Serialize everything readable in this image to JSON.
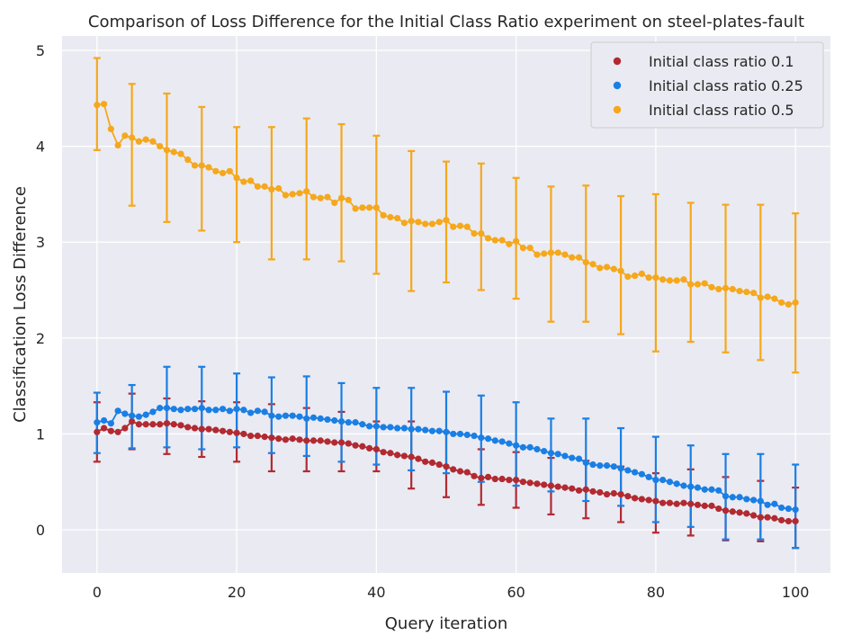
{
  "chart_data": {
    "type": "scatter",
    "title": "Comparison of Loss Difference for the Initial Class Ratio experiment on steel-plates-fault",
    "xlabel": "Query iteration",
    "ylabel": "Classification Loss Difference",
    "xlim": [
      -5,
      105
    ],
    "ylim": [
      -0.45,
      5.15
    ],
    "xticks": [
      0,
      20,
      40,
      60,
      80,
      100
    ],
    "yticks": [
      0,
      1,
      2,
      3,
      4,
      5
    ],
    "grid": true,
    "legend_position": "top-right",
    "background_color": "#eaeaf2",
    "series": [
      {
        "name": "Initial class ratio 0.1",
        "color": "#b22a31",
        "x": [
          0,
          1,
          2,
          3,
          4,
          5,
          6,
          7,
          8,
          9,
          10,
          11,
          12,
          13,
          14,
          15,
          16,
          17,
          18,
          19,
          20,
          21,
          22,
          23,
          24,
          25,
          26,
          27,
          28,
          29,
          30,
          31,
          32,
          33,
          34,
          35,
          36,
          37,
          38,
          39,
          40,
          41,
          42,
          43,
          44,
          45,
          46,
          47,
          48,
          49,
          50,
          51,
          52,
          53,
          54,
          55,
          56,
          57,
          58,
          59,
          60,
          61,
          62,
          63,
          64,
          65,
          66,
          67,
          68,
          69,
          70,
          71,
          72,
          73,
          74,
          75,
          76,
          77,
          78,
          79,
          80,
          81,
          82,
          83,
          84,
          85,
          86,
          87,
          88,
          89,
          90,
          91,
          92,
          93,
          94,
          95,
          96,
          97,
          98,
          99,
          100
        ],
        "values": [
          1.02,
          1.06,
          1.03,
          1.02,
          1.06,
          1.13,
          1.1,
          1.1,
          1.1,
          1.1,
          1.11,
          1.1,
          1.09,
          1.07,
          1.06,
          1.05,
          1.05,
          1.04,
          1.03,
          1.02,
          1.01,
          1.0,
          0.98,
          0.98,
          0.97,
          0.96,
          0.95,
          0.94,
          0.95,
          0.94,
          0.93,
          0.93,
          0.93,
          0.92,
          0.91,
          0.91,
          0.9,
          0.88,
          0.87,
          0.85,
          0.84,
          0.81,
          0.8,
          0.78,
          0.77,
          0.76,
          0.74,
          0.71,
          0.7,
          0.68,
          0.66,
          0.63,
          0.61,
          0.6,
          0.56,
          0.54,
          0.55,
          0.53,
          0.53,
          0.52,
          0.52,
          0.5,
          0.49,
          0.48,
          0.47,
          0.46,
          0.45,
          0.44,
          0.43,
          0.41,
          0.42,
          0.4,
          0.39,
          0.37,
          0.38,
          0.37,
          0.35,
          0.33,
          0.32,
          0.31,
          0.3,
          0.28,
          0.28,
          0.27,
          0.28,
          0.27,
          0.26,
          0.25,
          0.25,
          0.22,
          0.2,
          0.19,
          0.18,
          0.17,
          0.15,
          0.13,
          0.13,
          0.12,
          0.1,
          0.09,
          0.09
        ],
        "error_bar_x": [
          0,
          5,
          10,
          15,
          20,
          25,
          30,
          35,
          40,
          45,
          50,
          55,
          60,
          65,
          70,
          75,
          80,
          85,
          90,
          95,
          100
        ],
        "error_low": [
          0.71,
          0.84,
          0.79,
          0.76,
          0.71,
          0.61,
          0.61,
          0.61,
          0.61,
          0.43,
          0.34,
          0.26,
          0.23,
          0.16,
          0.12,
          0.08,
          -0.03,
          -0.06,
          -0.11,
          -0.12,
          -0.19
        ],
        "error_high": [
          1.33,
          1.42,
          1.37,
          1.34,
          1.33,
          1.31,
          1.27,
          1.23,
          1.13,
          1.13,
          1.02,
          0.84,
          0.81,
          0.75,
          0.72,
          0.66,
          0.59,
          0.63,
          0.55,
          0.51,
          0.44
        ]
      },
      {
        "name": "Initial class ratio 0.25",
        "color": "#1a7fe4",
        "x": [
          0,
          1,
          2,
          3,
          4,
          5,
          6,
          7,
          8,
          9,
          10,
          11,
          12,
          13,
          14,
          15,
          16,
          17,
          18,
          19,
          20,
          21,
          22,
          23,
          24,
          25,
          26,
          27,
          28,
          29,
          30,
          31,
          32,
          33,
          34,
          35,
          36,
          37,
          38,
          39,
          40,
          41,
          42,
          43,
          44,
          45,
          46,
          47,
          48,
          49,
          50,
          51,
          52,
          53,
          54,
          55,
          56,
          57,
          58,
          59,
          60,
          61,
          62,
          63,
          64,
          65,
          66,
          67,
          68,
          69,
          70,
          71,
          72,
          73,
          74,
          75,
          76,
          77,
          78,
          79,
          80,
          81,
          82,
          83,
          84,
          85,
          86,
          87,
          88,
          89,
          90,
          91,
          92,
          93,
          94,
          95,
          96,
          97,
          98,
          99,
          100
        ],
        "values": [
          1.12,
          1.14,
          1.11,
          1.24,
          1.21,
          1.19,
          1.18,
          1.2,
          1.23,
          1.27,
          1.27,
          1.26,
          1.25,
          1.26,
          1.26,
          1.27,
          1.25,
          1.25,
          1.26,
          1.24,
          1.26,
          1.25,
          1.22,
          1.24,
          1.23,
          1.19,
          1.18,
          1.19,
          1.19,
          1.18,
          1.16,
          1.17,
          1.16,
          1.15,
          1.14,
          1.13,
          1.12,
          1.12,
          1.1,
          1.08,
          1.08,
          1.07,
          1.07,
          1.06,
          1.06,
          1.05,
          1.05,
          1.04,
          1.03,
          1.03,
          1.02,
          1.0,
          1.0,
          0.99,
          0.98,
          0.96,
          0.95,
          0.93,
          0.92,
          0.9,
          0.88,
          0.86,
          0.86,
          0.84,
          0.82,
          0.8,
          0.79,
          0.77,
          0.75,
          0.74,
          0.7,
          0.68,
          0.67,
          0.67,
          0.66,
          0.64,
          0.62,
          0.6,
          0.58,
          0.55,
          0.52,
          0.52,
          0.5,
          0.48,
          0.46,
          0.45,
          0.44,
          0.42,
          0.42,
          0.41,
          0.35,
          0.34,
          0.34,
          0.32,
          0.31,
          0.3,
          0.26,
          0.27,
          0.23,
          0.22,
          0.21
        ],
        "error_bar_x": [
          0,
          5,
          10,
          15,
          20,
          25,
          30,
          35,
          40,
          45,
          50,
          55,
          60,
          65,
          70,
          75,
          80,
          85,
          90,
          95,
          100
        ],
        "error_low": [
          0.8,
          0.85,
          0.86,
          0.84,
          0.86,
          0.8,
          0.77,
          0.71,
          0.68,
          0.62,
          0.59,
          0.5,
          0.46,
          0.4,
          0.3,
          0.25,
          0.08,
          0.03,
          -0.1,
          -0.1,
          -0.19
        ],
        "error_high": [
          1.43,
          1.51,
          1.7,
          1.7,
          1.63,
          1.59,
          1.6,
          1.53,
          1.48,
          1.48,
          1.44,
          1.4,
          1.33,
          1.16,
          1.16,
          1.06,
          0.97,
          0.88,
          0.79,
          0.79,
          0.68
        ]
      },
      {
        "name": "Initial class ratio 0.5",
        "color": "#f5a81c",
        "x": [
          0,
          1,
          2,
          3,
          4,
          5,
          6,
          7,
          8,
          9,
          10,
          11,
          12,
          13,
          14,
          15,
          16,
          17,
          18,
          19,
          20,
          21,
          22,
          23,
          24,
          25,
          26,
          27,
          28,
          29,
          30,
          31,
          32,
          33,
          34,
          35,
          36,
          37,
          38,
          39,
          40,
          41,
          42,
          43,
          44,
          45,
          46,
          47,
          48,
          49,
          50,
          51,
          52,
          53,
          54,
          55,
          56,
          57,
          58,
          59,
          60,
          61,
          62,
          63,
          64,
          65,
          66,
          67,
          68,
          69,
          70,
          71,
          72,
          73,
          74,
          75,
          76,
          77,
          78,
          79,
          80,
          81,
          82,
          83,
          84,
          85,
          86,
          87,
          88,
          89,
          90,
          91,
          92,
          93,
          94,
          95,
          96,
          97,
          98,
          99,
          100
        ],
        "values": [
          4.43,
          4.44,
          4.18,
          4.01,
          4.11,
          4.09,
          4.05,
          4.07,
          4.05,
          4.0,
          3.96,
          3.94,
          3.92,
          3.86,
          3.8,
          3.8,
          3.78,
          3.74,
          3.72,
          3.74,
          3.67,
          3.63,
          3.64,
          3.58,
          3.58,
          3.55,
          3.56,
          3.49,
          3.5,
          3.51,
          3.53,
          3.47,
          3.46,
          3.47,
          3.41,
          3.46,
          3.44,
          3.35,
          3.36,
          3.36,
          3.36,
          3.28,
          3.26,
          3.25,
          3.2,
          3.22,
          3.21,
          3.19,
          3.19,
          3.21,
          3.23,
          3.16,
          3.17,
          3.16,
          3.09,
          3.09,
          3.04,
          3.02,
          3.02,
          2.98,
          3.01,
          2.94,
          2.94,
          2.87,
          2.88,
          2.89,
          2.89,
          2.87,
          2.84,
          2.84,
          2.79,
          2.77,
          2.73,
          2.74,
          2.72,
          2.7,
          2.64,
          2.65,
          2.67,
          2.63,
          2.63,
          2.61,
          2.6,
          2.6,
          2.61,
          2.56,
          2.56,
          2.57,
          2.53,
          2.51,
          2.52,
          2.51,
          2.49,
          2.48,
          2.47,
          2.42,
          2.43,
          2.41,
          2.37,
          2.35,
          2.37
        ],
        "error_bar_x": [
          0,
          5,
          10,
          15,
          20,
          25,
          30,
          35,
          40,
          45,
          50,
          55,
          60,
          65,
          70,
          75,
          80,
          85,
          90,
          95,
          100
        ],
        "error_low": [
          3.96,
          3.38,
          3.21,
          3.12,
          3.0,
          2.82,
          2.82,
          2.8,
          2.67,
          2.49,
          2.58,
          2.5,
          2.41,
          2.17,
          2.17,
          2.04,
          1.86,
          1.96,
          1.85,
          1.77,
          1.64
        ],
        "error_high": [
          4.92,
          4.65,
          4.55,
          4.41,
          4.2,
          4.2,
          4.29,
          4.23,
          4.11,
          3.95,
          3.84,
          3.82,
          3.67,
          3.58,
          3.59,
          3.48,
          3.5,
          3.41,
          3.39,
          3.39,
          3.3
        ]
      }
    ]
  }
}
